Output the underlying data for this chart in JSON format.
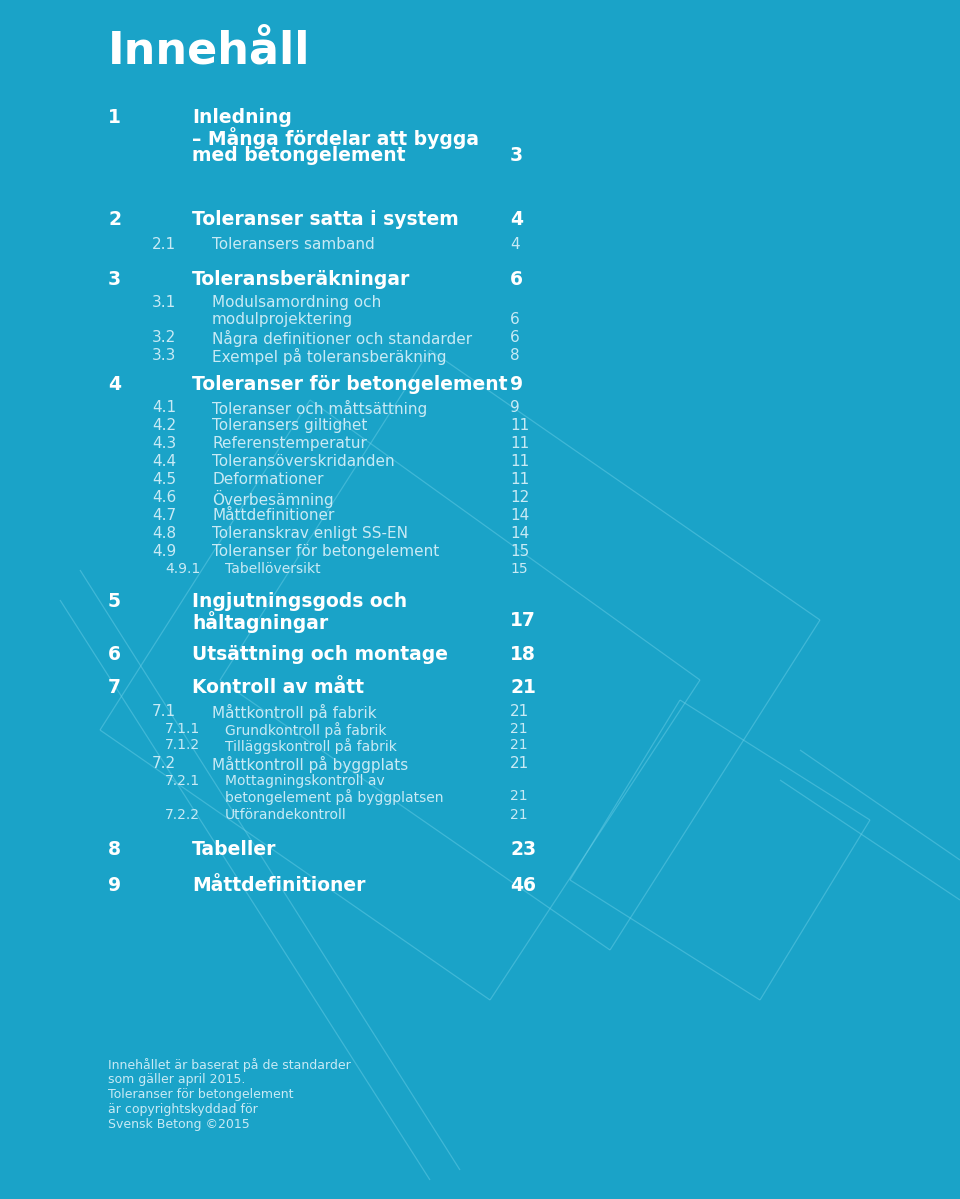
{
  "bg_color": "#1aa3c8",
  "title": "Innehåll",
  "title_color": "#ffffff",
  "white_color": "#ffffff",
  "light_color": "#c8eaf5",
  "sections": [
    {
      "num": "1",
      "text": "Inledning\n– Många fördelar att bygga\nmed betongelement",
      "page": "3",
      "bold": true,
      "level": 1
    },
    {
      "num": "2",
      "text": "Toleranser satta i system",
      "page": "4",
      "bold": true,
      "level": 1
    },
    {
      "num": "2.1",
      "text": "Toleransers samband",
      "page": "4",
      "bold": false,
      "level": 2
    },
    {
      "num": "3",
      "text": "Toleransberäkningar",
      "page": "6",
      "bold": true,
      "level": 1
    },
    {
      "num": "3.1",
      "text": "Modulsamordning och\nmodulprojektering",
      "page": "6",
      "bold": false,
      "level": 2
    },
    {
      "num": "3.2",
      "text": "Några definitioner och standarder",
      "page": "6",
      "bold": false,
      "level": 2
    },
    {
      "num": "3.3",
      "text": "Exempel på toleransberäkning",
      "page": "8",
      "bold": false,
      "level": 2
    },
    {
      "num": "4",
      "text": "Toleranser för betongelement",
      "page": "9",
      "bold": true,
      "level": 1
    },
    {
      "num": "4.1",
      "text": "Toleranser och måttsättning",
      "page": "9",
      "bold": false,
      "level": 2
    },
    {
      "num": "4.2",
      "text": "Toleransers giltighet",
      "page": "11",
      "bold": false,
      "level": 2
    },
    {
      "num": "4.3",
      "text": "Referenstemperatur",
      "page": "11",
      "bold": false,
      "level": 2
    },
    {
      "num": "4.4",
      "text": "Toleransöverskridanden",
      "page": "11",
      "bold": false,
      "level": 2
    },
    {
      "num": "4.5",
      "text": "Deformationer",
      "page": "11",
      "bold": false,
      "level": 2
    },
    {
      "num": "4.6",
      "text": "Överbesämning",
      "page": "12",
      "bold": false,
      "level": 2
    },
    {
      "num": "4.7",
      "text": "Måttdefinitioner",
      "page": "14",
      "bold": false,
      "level": 2
    },
    {
      "num": "4.8",
      "text": "Toleranskrav enligt SS-EN",
      "page": "14",
      "bold": false,
      "level": 2
    },
    {
      "num": "4.9",
      "text": "Toleranser för betongelement",
      "page": "15",
      "bold": false,
      "level": 2
    },
    {
      "num": "4.9.1",
      "text": "Tabellöversikt",
      "page": "15",
      "bold": false,
      "level": 3
    },
    {
      "num": "5",
      "text": "Ingjutningsgods och\nhåltagningar",
      "page": "17",
      "bold": true,
      "level": 1
    },
    {
      "num": "6",
      "text": "Utsättning och montage",
      "page": "18",
      "bold": true,
      "level": 1
    },
    {
      "num": "7",
      "text": "Kontroll av mått",
      "page": "21",
      "bold": true,
      "level": 1
    },
    {
      "num": "7.1",
      "text": "Måttkontroll på fabrik",
      "page": "21",
      "bold": false,
      "level": 2
    },
    {
      "num": "7.1.1",
      "text": "Grundkontroll på fabrik",
      "page": "21",
      "bold": false,
      "level": 3
    },
    {
      "num": "7.1.2",
      "text": "Tilläggskontroll på fabrik",
      "page": "21",
      "bold": false,
      "level": 3
    },
    {
      "num": "7.2",
      "text": "Måttkontroll på byggplats",
      "page": "21",
      "bold": false,
      "level": 2
    },
    {
      "num": "7.2.1",
      "text": "Mottagningskontroll av\nbetongelement på byggplatsen",
      "page": "21",
      "bold": false,
      "level": 3
    },
    {
      "num": "7.2.2",
      "text": "Utförandekontroll",
      "page": "21",
      "bold": false,
      "level": 3
    },
    {
      "num": "8",
      "text": "Tabeller",
      "page": "23",
      "bold": true,
      "level": 1
    },
    {
      "num": "9",
      "text": "Måttdefinitioner",
      "page": "46",
      "bold": true,
      "level": 1
    }
  ],
  "footer_text": "Innehållet är baserat på de standarder\nsom gäller april 2015.\nToleranser för betongelement\när copyrightskyddad för\nSvensk Betong ©2015",
  "line_color": "#6dd0e8",
  "line_alpha": 0.45,
  "line_width": 0.9
}
